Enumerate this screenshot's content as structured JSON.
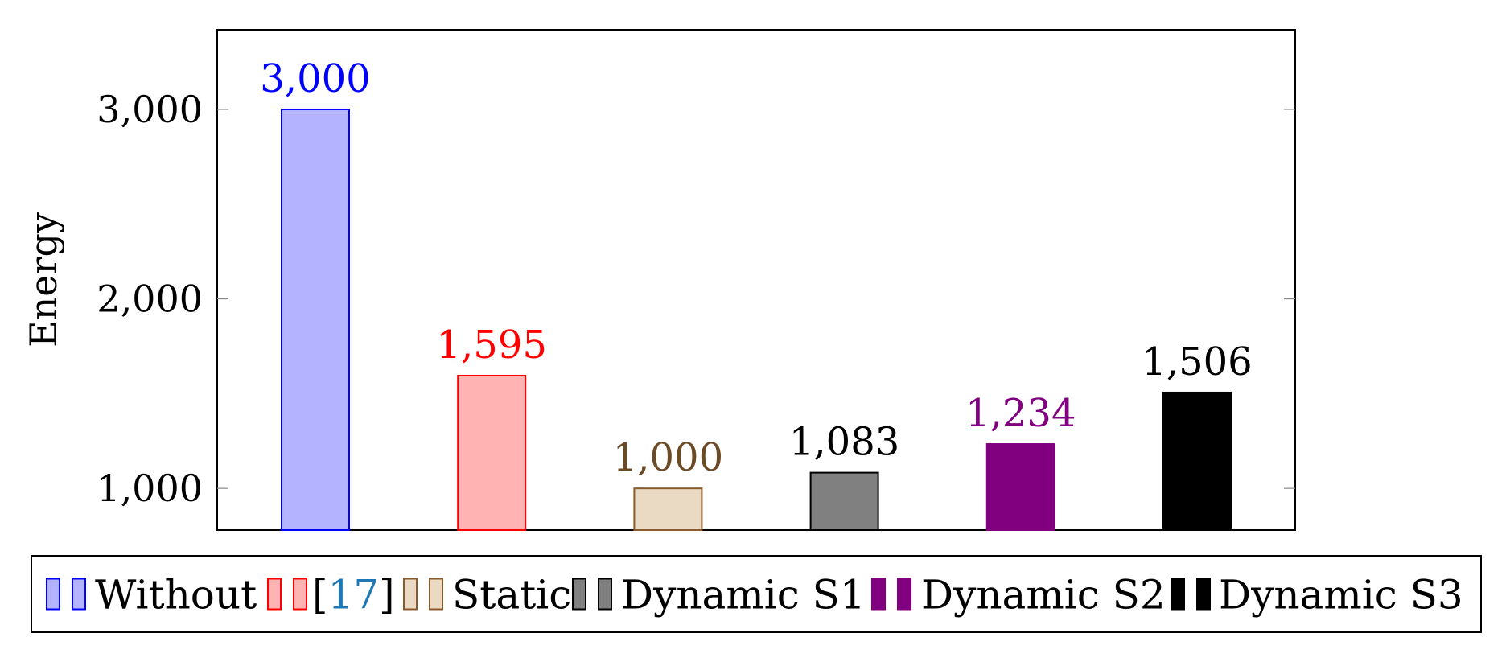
{
  "chart_data": {
    "type": "bar",
    "title": "",
    "xlabel": "",
    "ylabel": "Energy",
    "ylim": [
      780,
      3420
    ],
    "yticks": [
      1000,
      2000,
      3000
    ],
    "ytick_labels": [
      "1,000",
      "2,000",
      "3,000"
    ],
    "grid": false,
    "legend_position": "bottom",
    "series": [
      {
        "name": "Without",
        "legend_label": "Without",
        "value": 3000,
        "value_label": "3,000",
        "fill": "#b3b3ff",
        "stroke": "#0000ff",
        "label_color": "#0000ff"
      },
      {
        "name": "[17]",
        "legend_label": "[17]",
        "legend_ref": "17",
        "value": 1595,
        "value_label": "1,595",
        "fill": "#ffb3b3",
        "stroke": "#ff0000",
        "label_color": "#ff0000"
      },
      {
        "name": "Static",
        "legend_label": "Static",
        "value": 1000,
        "value_label": "1,000",
        "fill": "#ead9c3",
        "stroke": "#8b5a2b",
        "label_color": "#6b4a26"
      },
      {
        "name": "Dynamic S1",
        "legend_label": "Dynamic S1",
        "value": 1083,
        "value_label": "1,083",
        "fill": "#808080",
        "stroke": "#000000",
        "label_color": "#000000"
      },
      {
        "name": "Dynamic S2",
        "legend_label": "Dynamic S2",
        "value": 1234,
        "value_label": "1,234",
        "fill": "#800080",
        "stroke": "#800080",
        "label_color": "#800080"
      },
      {
        "name": "Dynamic S3",
        "legend_label": "Dynamic S3",
        "value": 1506,
        "value_label": "1,506",
        "fill": "#000000",
        "stroke": "#000000",
        "label_color": "#000000"
      }
    ],
    "ref_link_color": "#1f78b4"
  }
}
